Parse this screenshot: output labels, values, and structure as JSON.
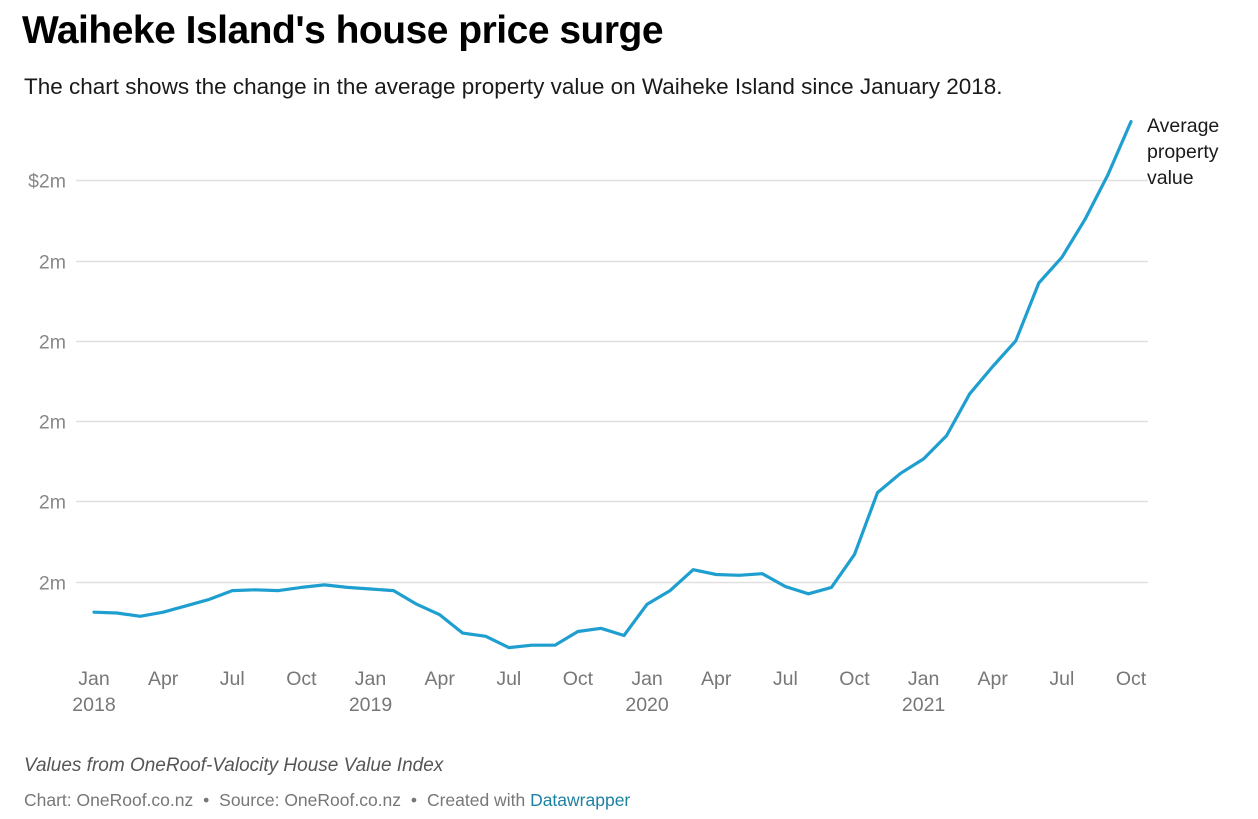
{
  "title": "Waiheke Island's house price surge",
  "subtitle": "The chart shows the change in the average property value on Waiheke Island since January 2018.",
  "chart_data": {
    "type": "line",
    "series": [
      {
        "name": "Average property value",
        "label_lines": [
          "Average",
          "property",
          "value"
        ],
        "color": "#1f9fcf",
        "x": [
          "2018-01",
          "2018-02",
          "2018-03",
          "2018-04",
          "2018-05",
          "2018-06",
          "2018-07",
          "2018-08",
          "2018-09",
          "2018-10",
          "2018-11",
          "2018-12",
          "2019-01",
          "2019-02",
          "2019-03",
          "2019-04",
          "2019-05",
          "2019-06",
          "2019-07",
          "2019-08",
          "2019-09",
          "2019-10",
          "2019-11",
          "2019-12",
          "2020-01",
          "2020-02",
          "2020-03",
          "2020-04",
          "2020-05",
          "2020-06",
          "2020-07",
          "2020-08",
          "2020-09",
          "2020-10",
          "2020-11",
          "2020-12",
          "2021-01",
          "2021-02",
          "2021-03",
          "2021-04",
          "2021-05",
          "2021-06",
          "2021-07",
          "2021-08",
          "2021-09",
          "2021-10"
        ],
        "values": [
          1.462,
          1.461,
          1.457,
          1.462,
          1.47,
          1.478,
          1.489,
          1.49,
          1.489,
          1.493,
          1.496,
          1.493,
          1.491,
          1.489,
          1.472,
          1.459,
          1.436,
          1.432,
          1.418,
          1.421,
          1.421,
          1.438,
          1.442,
          1.433,
          1.472,
          1.489,
          1.515,
          1.509,
          1.508,
          1.51,
          1.494,
          1.485,
          1.493,
          1.534,
          1.611,
          1.635,
          1.653,
          1.682,
          1.734,
          1.768,
          1.8,
          1.872,
          1.904,
          1.951,
          2.007,
          2.073
        ]
      }
    ],
    "y_ticks": [
      1.5,
      1.6,
      1.7,
      1.8,
      1.9,
      2.0
    ],
    "y_tick_labels": [
      "2m",
      "2m",
      "2m",
      "2m",
      "2m",
      "$2m"
    ],
    "ylim": [
      1.41,
      2.075
    ],
    "x_ticks": [
      {
        "month": "2018-01",
        "label": "Jan",
        "year": "2018"
      },
      {
        "month": "2018-04",
        "label": "Apr",
        "year": ""
      },
      {
        "month": "2018-07",
        "label": "Jul",
        "year": ""
      },
      {
        "month": "2018-10",
        "label": "Oct",
        "year": ""
      },
      {
        "month": "2019-01",
        "label": "Jan",
        "year": "2019"
      },
      {
        "month": "2019-04",
        "label": "Apr",
        "year": ""
      },
      {
        "month": "2019-07",
        "label": "Jul",
        "year": ""
      },
      {
        "month": "2019-10",
        "label": "Oct",
        "year": ""
      },
      {
        "month": "2020-01",
        "label": "Jan",
        "year": "2020"
      },
      {
        "month": "2020-04",
        "label": "Apr",
        "year": ""
      },
      {
        "month": "2020-07",
        "label": "Jul",
        "year": ""
      },
      {
        "month": "2020-10",
        "label": "Oct",
        "year": ""
      },
      {
        "month": "2021-01",
        "label": "Jan",
        "year": "2021"
      },
      {
        "month": "2021-04",
        "label": "Apr",
        "year": ""
      },
      {
        "month": "2021-07",
        "label": "Jul",
        "year": ""
      },
      {
        "month": "2021-10",
        "label": "Oct",
        "year": ""
      }
    ],
    "xlabel": "",
    "ylabel": "",
    "grid": true,
    "legend": "direct label at line end"
  },
  "notes": "Values from OneRoof-Valocity House Value Index",
  "footer": {
    "chart_credit": "Chart: OneRoof.co.nz",
    "separator": "•",
    "source": "Source: OneRoof.co.nz",
    "created_with": "Created with",
    "tool": "Datawrapper"
  },
  "colors": {
    "line": "#1f9fcf",
    "gridline": "#e0e0e0",
    "axis_text": "#888888",
    "link": "#1d81a2"
  }
}
